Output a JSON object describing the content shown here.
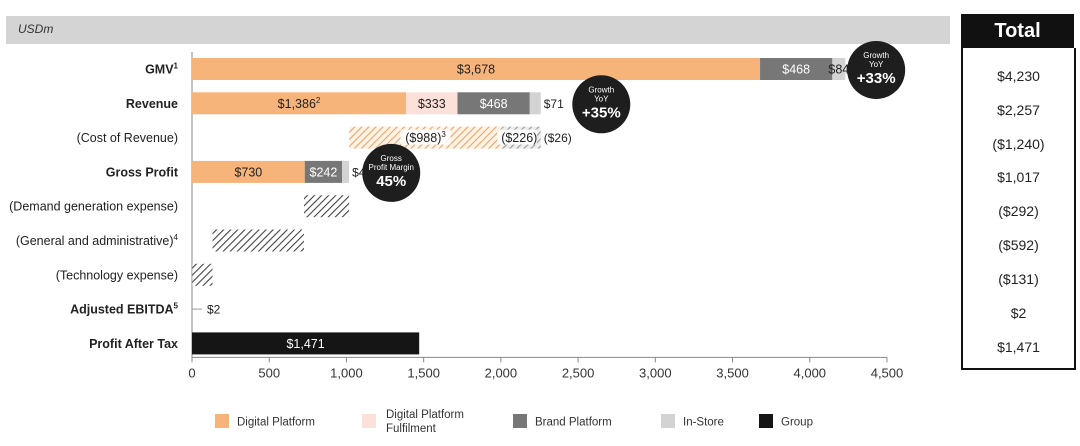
{
  "unit_label": "USDm",
  "total_header": "Total",
  "totals": [
    "$4,230",
    "$2,257",
    "($1,240)",
    "$1,017",
    "($292)",
    "($592)",
    "($131)",
    "$2",
    "$1,471"
  ],
  "colors": {
    "digital_platform": "#f7b47a",
    "digital_fulfilment": "#fbe1d9",
    "brand_platform": "#777777",
    "in_store": "#d3d3d3",
    "group": "#151515",
    "cost_hatch": "#555555",
    "bubble": "#1e1e1e"
  },
  "chart_data": {
    "type": "bar",
    "orientation": "horizontal",
    "stacked": true,
    "xlim": [
      0,
      4500
    ],
    "xticks": [
      0,
      500,
      1000,
      1500,
      2000,
      2500,
      3000,
      3500,
      4000,
      4500
    ],
    "xtick_labels": [
      "0",
      "500",
      "1,000",
      "1,500",
      "2,000",
      "2,500",
      "3,000",
      "3,500",
      "4,000",
      "4,500"
    ],
    "legend_position": "bottom",
    "legend": [
      {
        "key": "digital_platform",
        "label": "Digital Platform"
      },
      {
        "key": "digital_fulfilment",
        "label": "Digital Platform Fulfilment"
      },
      {
        "key": "brand_platform",
        "label": "Brand Platform"
      },
      {
        "key": "in_store",
        "label": "In-Store"
      },
      {
        "key": "group",
        "label": "Group"
      }
    ],
    "rows": [
      {
        "label": "GMV",
        "sup": "1",
        "bold": true,
        "segments": [
          {
            "series": "digital_platform",
            "start": 0,
            "end": 3678,
            "label": "$3,678",
            "label_pos": "inside"
          },
          {
            "series": "brand_platform",
            "start": 3678,
            "end": 4146,
            "label": "$468",
            "label_pos": "inside"
          },
          {
            "series": "in_store",
            "start": 4146,
            "end": 4230,
            "label": "$84",
            "label_pos": "inside"
          }
        ]
      },
      {
        "label": "Revenue",
        "sup": "",
        "bold": true,
        "segments": [
          {
            "series": "digital_platform",
            "start": 0,
            "end": 1386,
            "label": "$1,386",
            "label_sup": "2",
            "label_pos": "inside"
          },
          {
            "series": "digital_fulfilment",
            "start": 1386,
            "end": 1719,
            "label": "$333",
            "label_pos": "inside"
          },
          {
            "series": "brand_platform",
            "start": 1719,
            "end": 2187,
            "label": "$468",
            "label_pos": "inside"
          },
          {
            "series": "in_store",
            "start": 2187,
            "end": 2258,
            "label": "$71",
            "label_pos": "right"
          }
        ]
      },
      {
        "label": "(Cost of Revenue)",
        "sup": "",
        "bold": false,
        "segments": [
          {
            "series": "cost",
            "start": 1018,
            "end": 2006,
            "label": "($988)",
            "label_sup": "3",
            "label_pos": "inside"
          },
          {
            "series": "cost_light",
            "start": 2006,
            "end": 2232,
            "label": "($226)",
            "label_pos": "inside"
          },
          {
            "series": "cost_light",
            "start": 2232,
            "end": 2258,
            "label": "($26)",
            "label_pos": "right"
          }
        ]
      },
      {
        "label": "Gross Profit",
        "sup": "",
        "bold": true,
        "segments": [
          {
            "series": "digital_platform",
            "start": 0,
            "end": 730,
            "label": "$730",
            "label_pos": "inside"
          },
          {
            "series": "brand_platform",
            "start": 730,
            "end": 972,
            "label": "$242",
            "label_pos": "inside"
          },
          {
            "series": "in_store",
            "start": 972,
            "end": 1017,
            "label": "$45",
            "label_pos": "right"
          }
        ]
      },
      {
        "label": "(Demand generation expense)",
        "sup": "",
        "bold": false,
        "segments": [
          {
            "series": "cost",
            "start": 725,
            "end": 1017,
            "label": "",
            "label_pos": "none"
          }
        ]
      },
      {
        "label": "(General and administrative)",
        "sup": "4",
        "bold": false,
        "segments": [
          {
            "series": "cost",
            "start": 133,
            "end": 725,
            "label": "",
            "label_pos": "none"
          }
        ]
      },
      {
        "label": "(Technology expense)",
        "sup": "",
        "bold": false,
        "segments": [
          {
            "series": "cost",
            "start": 2,
            "end": 133,
            "label": "",
            "label_pos": "none"
          }
        ]
      },
      {
        "label": "Adjusted EBITDA",
        "sup": "5",
        "bold": true,
        "segments": [
          {
            "series": "line",
            "start": 0,
            "end": 60,
            "label": "$2",
            "label_pos": "right"
          }
        ]
      },
      {
        "label": "Profit After Tax",
        "sup": "",
        "bold": true,
        "segments": [
          {
            "series": "group",
            "start": 0,
            "end": 1471,
            "label": "$1,471",
            "label_pos": "inside"
          }
        ]
      }
    ],
    "bubbles": [
      {
        "lines": [
          "Growth",
          "YoY"
        ],
        "value": "+33%",
        "x": 4430,
        "row": 0
      },
      {
        "lines": [
          "Growth",
          "YoY"
        ],
        "value": "+35%",
        "x": 2650,
        "row": 1
      },
      {
        "lines": [
          "Gross",
          "Profit Margin"
        ],
        "value": "45%",
        "x": 1290,
        "row": 3
      }
    ]
  }
}
